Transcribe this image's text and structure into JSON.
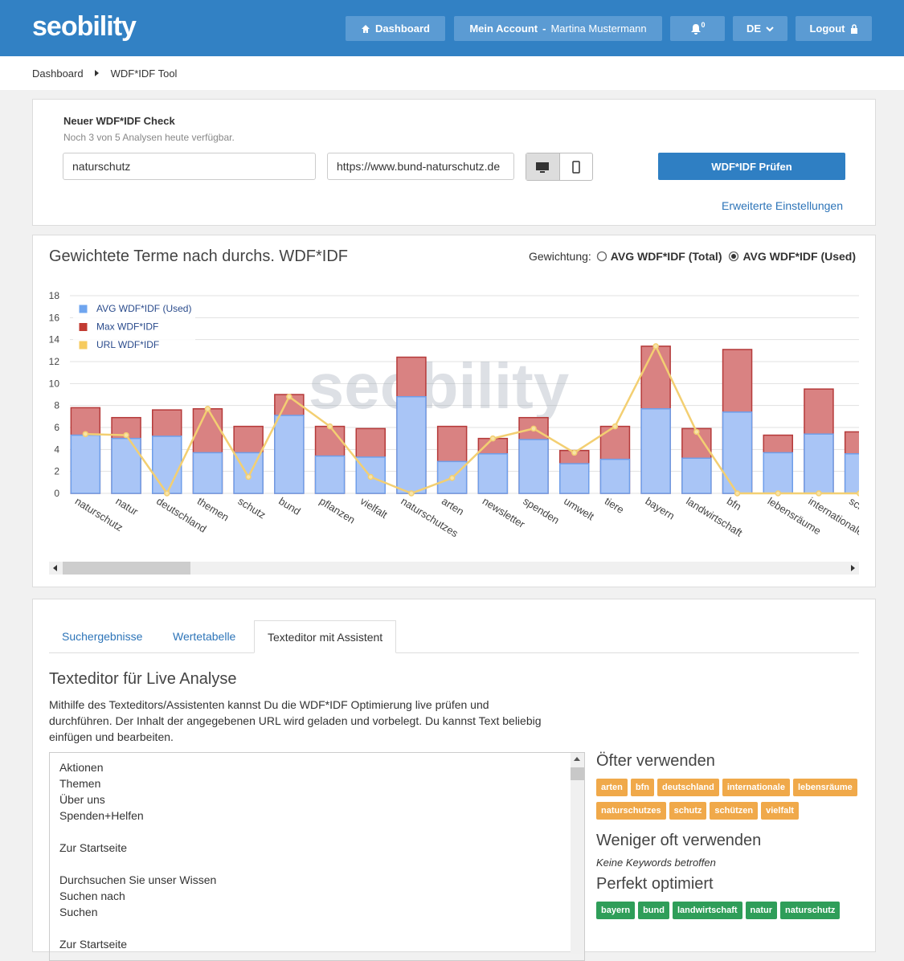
{
  "header": {
    "logo": "seobility",
    "nav": {
      "dashboard": "Dashboard",
      "account": "Mein Account",
      "account_user": "Martina Mustermann",
      "notifications": "0",
      "language": "DE",
      "logout": "Logout"
    }
  },
  "breadcrumb": [
    "Dashboard",
    "WDF*IDF Tool"
  ],
  "check": {
    "title": "Neuer WDF*IDF Check",
    "subtitle": "Noch 3 von 5 Analysen heute verfügbar.",
    "keyword": "naturschutz",
    "url": "https://www.bund-naturschutz.de",
    "button": "WDF*IDF Prüfen",
    "advanced": "Erweiterte Einstellungen"
  },
  "chart_panel": {
    "heading": "Gewichtete Terme nach durchs. WDF*IDF",
    "weighting_label": "Gewichtung:",
    "options": [
      "AVG WDF*IDF (Total)",
      "AVG WDF*IDF (Used)"
    ],
    "selected": 1
  },
  "chart_data": {
    "type": "bar",
    "watermark": "seobility",
    "categories": [
      "naturschutz",
      "natur",
      "deutschland",
      "themen",
      "schutz",
      "bund",
      "pflanzen",
      "vielfalt",
      "naturschutzes",
      "arten",
      "newsletter",
      "spenden",
      "umwelt",
      "tiere",
      "bayern",
      "landwirtschaft",
      "bfn",
      "lebensräume",
      "internationale",
      "schützen"
    ],
    "series": [
      {
        "name": "AVG WDF*IDF (Used)",
        "color": "#a9c5f6",
        "values": [
          5.3,
          5.0,
          5.2,
          3.7,
          3.7,
          7.1,
          3.4,
          3.3,
          8.8,
          2.9,
          3.6,
          4.9,
          2.7,
          3.1,
          7.7,
          3.2,
          7.4,
          3.7,
          5.4,
          3.6
        ]
      },
      {
        "name": "Max WDF*IDF",
        "color": "#d98282",
        "values": [
          7.8,
          6.9,
          7.6,
          7.7,
          6.1,
          9.0,
          6.1,
          5.9,
          12.4,
          6.1,
          5.0,
          6.9,
          3.9,
          6.1,
          13.4,
          5.9,
          13.1,
          5.3,
          9.5,
          5.6
        ]
      },
      {
        "name": "URL WDF*IDF",
        "type": "line",
        "color": "#f3cf72",
        "values": [
          5.4,
          5.3,
          0,
          7.7,
          1.5,
          8.8,
          6.1,
          1.5,
          0,
          1.4,
          5.0,
          5.9,
          3.7,
          6.1,
          13.4,
          5.6,
          0,
          0,
          0,
          0
        ]
      }
    ],
    "ylim": [
      0,
      18
    ],
    "yticks": [
      0,
      2,
      4,
      6,
      8,
      10,
      12,
      14,
      16,
      18
    ],
    "grid": true,
    "legend": "top-left"
  },
  "tabs": {
    "items": [
      "Suchergebnisse",
      "Wertetabelle",
      "Texteditor mit Assistent"
    ],
    "active": 2
  },
  "editor": {
    "title": "Texteditor für Live Analyse",
    "description": "Mithilfe des Texteditors/Assistenten kannst Du die WDF*IDF Optimierung live prüfen und durchführen. Der Inhalt der angegebenen URL wird geladen und vorbelegt. Du kannst Text beliebig einfügen und bearbeiten.",
    "paragraphs": [
      [
        "Aktionen",
        "Themen",
        "Über uns",
        "Spenden+Helfen"
      ],
      [
        "Zur Startseite"
      ],
      [
        "Durchsuchen Sie unser Wissen",
        "Suchen nach",
        "Suchen"
      ],
      [
        "Zur Startseite"
      ]
    ]
  },
  "assistant": {
    "more": {
      "title": "Öfter verwenden",
      "tags": [
        "arten",
        "bfn",
        "deutschland",
        "internationale",
        "lebensräume",
        "naturschutzes",
        "schutz",
        "schützen",
        "vielfalt"
      ]
    },
    "less": {
      "title": "Weniger oft verwenden",
      "note": "Keine Keywords betroffen"
    },
    "perfect": {
      "title": "Perfekt optimiert",
      "tags": [
        "bayern",
        "bund",
        "landwirtschaft",
        "natur",
        "naturschutz"
      ]
    }
  }
}
